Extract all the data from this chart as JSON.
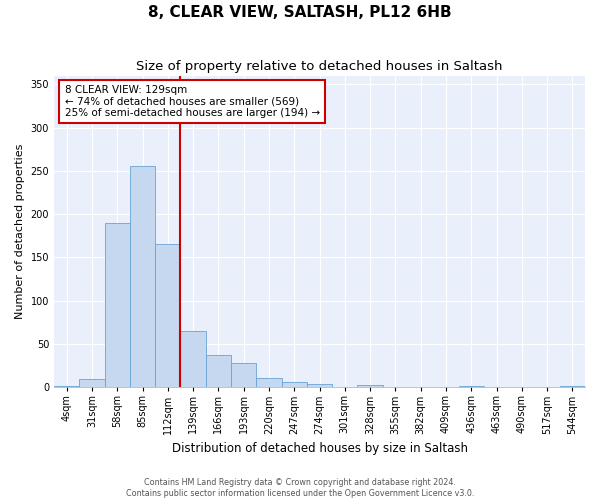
{
  "title": "8, CLEAR VIEW, SALTASH, PL12 6HB",
  "subtitle": "Size of property relative to detached houses in Saltash",
  "xlabel": "Distribution of detached houses by size in Saltash",
  "ylabel": "Number of detached properties",
  "bin_labels": [
    "4sqm",
    "31sqm",
    "58sqm",
    "85sqm",
    "112sqm",
    "139sqm",
    "166sqm",
    "193sqm",
    "220sqm",
    "247sqm",
    "274sqm",
    "301sqm",
    "328sqm",
    "355sqm",
    "382sqm",
    "409sqm",
    "436sqm",
    "463sqm",
    "490sqm",
    "517sqm",
    "544sqm"
  ],
  "bar_heights": [
    2,
    10,
    190,
    255,
    165,
    65,
    37,
    28,
    11,
    6,
    4,
    0,
    3,
    0,
    0,
    0,
    1,
    0,
    0,
    0,
    1
  ],
  "bar_color": "#c5d8f0",
  "bar_edgecolor": "#6aa3d5",
  "vline_pos": 4.5,
  "vline_color": "#cc0000",
  "annotation_text": "8 CLEAR VIEW: 129sqm\n← 74% of detached houses are smaller (569)\n25% of semi-detached houses are larger (194) →",
  "annotation_box_color": "#ffffff",
  "annotation_box_edgecolor": "#cc0000",
  "ylim": [
    0,
    360
  ],
  "yticks": [
    0,
    50,
    100,
    150,
    200,
    250,
    300,
    350
  ],
  "bg_color": "#eaf0fb",
  "footer": "Contains HM Land Registry data © Crown copyright and database right 2024.\nContains public sector information licensed under the Open Government Licence v3.0.",
  "title_fontsize": 11,
  "subtitle_fontsize": 9.5,
  "tick_fontsize": 7,
  "ylabel_fontsize": 8,
  "xlabel_fontsize": 8.5,
  "annotation_fontsize": 7.5
}
